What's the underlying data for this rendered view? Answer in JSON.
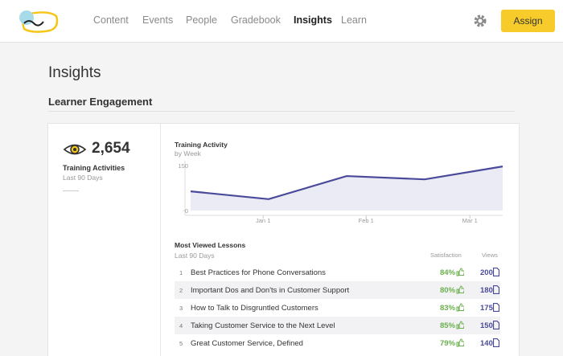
{
  "header": {
    "nav": [
      "Content",
      "Events",
      "People",
      "Gradebook",
      "Insights",
      "Learn"
    ],
    "button": "Assign"
  },
  "page": {
    "title": "Insights",
    "section": "Learner Engagement"
  },
  "summary": {
    "value": "2,654",
    "label": "Training Activities",
    "period": "Last 90 Days"
  },
  "chart_data": {
    "type": "area",
    "title": "Training Activity",
    "subtitle": "by Week",
    "color": "#4a4a9a",
    "x": [
      0,
      1,
      2,
      3,
      4
    ],
    "values": [
      64,
      38,
      115,
      104,
      147
    ],
    "xlim": [
      0,
      4
    ],
    "xticks": [
      {
        "value": 0.93,
        "label": "Jan 1"
      },
      {
        "value": 2.25,
        "label": "Feb 1"
      },
      {
        "value": 3.58,
        "label": "Mar 1"
      }
    ],
    "ylim": [
      0,
      150
    ],
    "yticks": [
      0,
      150
    ]
  },
  "table": {
    "title": "Most Viewed Lessons",
    "period": "Last 90 Days",
    "columns": [
      "Satisfaction",
      "Views"
    ],
    "rows": [
      {
        "rank": "1",
        "title": "Best Practices for Phone Conversations",
        "satisfaction": "84%",
        "views": "200"
      },
      {
        "rank": "2",
        "title": "Important Dos and Don'ts in Customer Support",
        "satisfaction": "80%",
        "views": "180"
      },
      {
        "rank": "3",
        "title": "How to Talk to Disgruntled Customers",
        "satisfaction": "83%",
        "views": "175"
      },
      {
        "rank": "4",
        "title": "Taking Customer Service to the Next Level",
        "satisfaction": "85%",
        "views": "150"
      },
      {
        "rank": "5",
        "title": "Great Customer Service, Defined",
        "satisfaction": "79%",
        "views": "140"
      }
    ]
  }
}
